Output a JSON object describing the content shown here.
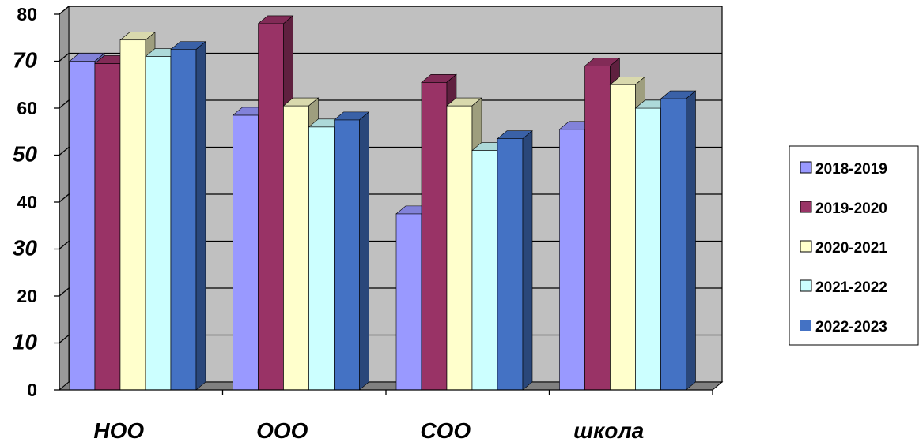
{
  "chart_data": {
    "type": "bar",
    "title": "",
    "xlabel": "",
    "ylabel": "",
    "categories": [
      "НОО",
      "ООО",
      "СОО",
      "школа"
    ],
    "ylim": [
      0,
      80
    ],
    "yticks": [
      {
        "label": "0",
        "value": 0,
        "italic": false
      },
      {
        "label": "10",
        "value": 10,
        "italic": true
      },
      {
        "label": "20",
        "value": 20,
        "italic": false
      },
      {
        "label": "30",
        "value": 30,
        "italic": true
      },
      {
        "label": "40",
        "value": 40,
        "italic": false
      },
      {
        "label": "50",
        "value": 50,
        "italic": true
      },
      {
        "label": "60",
        "value": 60,
        "italic": false
      },
      {
        "label": "70",
        "value": 70,
        "italic": true
      },
      {
        "label": "80",
        "value": 80,
        "italic": false
      }
    ],
    "grid": true,
    "legend_position": "right",
    "series": [
      {
        "name": "2018-2019",
        "color": "#9999FF",
        "values": [
          70,
          58.5,
          37.5,
          55.5
        ]
      },
      {
        "name": "2019-2020",
        "color": "#993366",
        "values": [
          69.5,
          78,
          65.5,
          69
        ]
      },
      {
        "name": "2020-2021",
        "color": "#FFFFCC",
        "values": [
          74.5,
          60.5,
          60.5,
          65
        ]
      },
      {
        "name": "2021-2022",
        "color": "#CCFFFF",
        "values": [
          71,
          56,
          51,
          60
        ]
      },
      {
        "name": "2022-2023",
        "color": "#4472C4",
        "values": [
          72.5,
          57.5,
          53.5,
          62
        ]
      }
    ],
    "plot_background": "#C0C0C0"
  }
}
